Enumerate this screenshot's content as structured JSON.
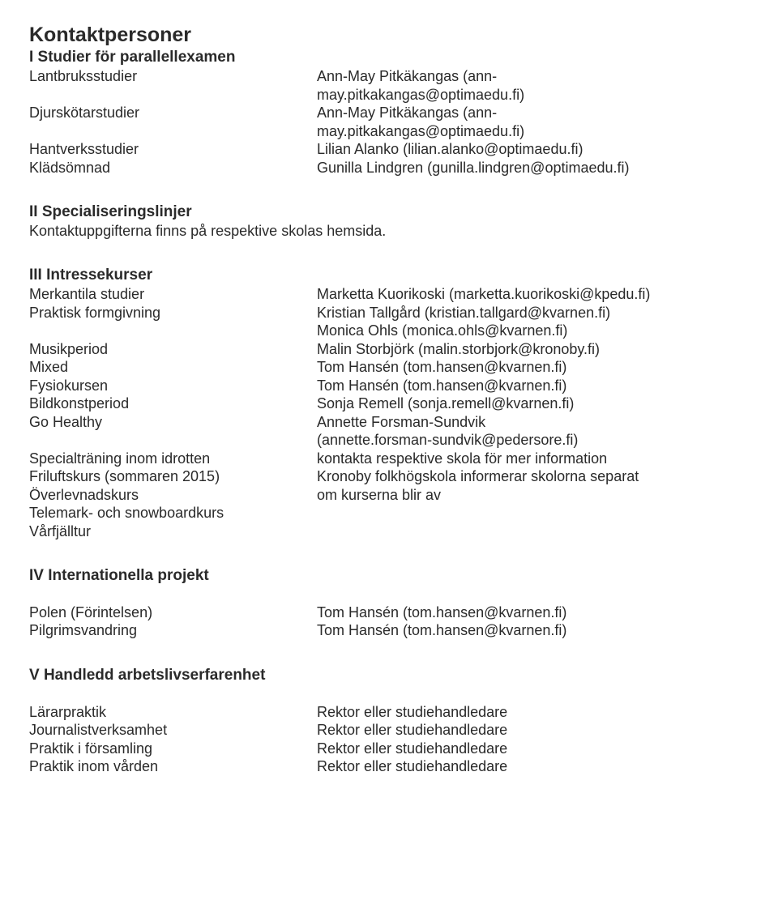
{
  "heading": "Kontaktpersoner",
  "sec1": {
    "title": "I  Studier för parallellexamen",
    "rows": [
      {
        "l": "Lantbruksstudier",
        "r1": "Ann-May Pitkäkangas (ann-",
        "r2": "may.pitkakangas@optimaedu.fi)"
      },
      {
        "l": "Djurskötarstudier",
        "r1": "Ann-May Pitkäkangas (ann-",
        "r2": "may.pitkakangas@optimaedu.fi)"
      },
      {
        "l": "Hantverksstudier",
        "r1": "Lilian Alanko (lilian.alanko@optimaedu.fi)",
        "r2": ""
      },
      {
        "l": "Klädsömnad",
        "r1": "Gunilla Lindgren (gunilla.lindgren@optimaedu.fi)",
        "r2": ""
      }
    ]
  },
  "sec2": {
    "title": "II  Specialiseringslinjer",
    "note": "Kontaktuppgifterna finns på respektive skolas hemsida."
  },
  "sec3": {
    "title": "III  Intressekurser",
    "rows": [
      {
        "l": "Merkantila studier",
        "r": "Marketta Kuorikoski (marketta.kuorikoski@kpedu.fi)"
      },
      {
        "l": "Praktisk formgivning",
        "r": "Kristian Tallgård (kristian.tallgard@kvarnen.fi)"
      },
      {
        "l": "",
        "r": "Monica Ohls (monica.ohls@kvarnen.fi)"
      },
      {
        "l": "Musikperiod",
        "r": "Malin Storbjörk (malin.storbjork@kronoby.fi)"
      },
      {
        "l": "Mixed",
        "r": "Tom Hansén (tom.hansen@kvarnen.fi)"
      },
      {
        "l": "Fysiokursen",
        "r": "Tom Hansén (tom.hansen@kvarnen.fi)"
      },
      {
        "l": "Bildkonstperiod",
        "r": "Sonja Remell (sonja.remell@kvarnen.fi)"
      },
      {
        "l": "Go Healthy",
        "r": "Annette Forsman-Sundvik"
      },
      {
        "l": "",
        "r": "(annette.forsman-sundvik@pedersore.fi)"
      },
      {
        "l": "Specialträning inom idrotten",
        "r": "kontakta respektive skola för mer information"
      },
      {
        "l": "Friluftskurs (sommaren 2015)",
        "r": "Kronoby folkhögskola informerar skolorna separat"
      },
      {
        "l": "Överlevnadskurs",
        "r": "om kurserna blir av"
      },
      {
        "l": "Telemark- och snowboardkurs",
        "r": ""
      },
      {
        "l": "Vårfjälltur",
        "r": ""
      }
    ]
  },
  "sec4": {
    "title": "IV  Internationella projekt",
    "rows": [
      {
        "l": "Polen (Förintelsen)",
        "r": "Tom Hansén (tom.hansen@kvarnen.fi)"
      },
      {
        "l": "Pilgrimsvandring",
        "r": "Tom Hansén (tom.hansen@kvarnen.fi)"
      }
    ]
  },
  "sec5": {
    "title": "V  Handledd arbetslivserfarenhet",
    "rows": [
      {
        "l": "Lärarpraktik",
        "r": "Rektor eller studiehandledare"
      },
      {
        "l": "Journalistverksamhet",
        "r": "Rektor eller studiehandledare"
      },
      {
        "l": "Praktik i församling",
        "r": "Rektor eller studiehandledare"
      },
      {
        "l": "Praktik inom vården",
        "r": "Rektor eller studiehandledare"
      }
    ]
  }
}
